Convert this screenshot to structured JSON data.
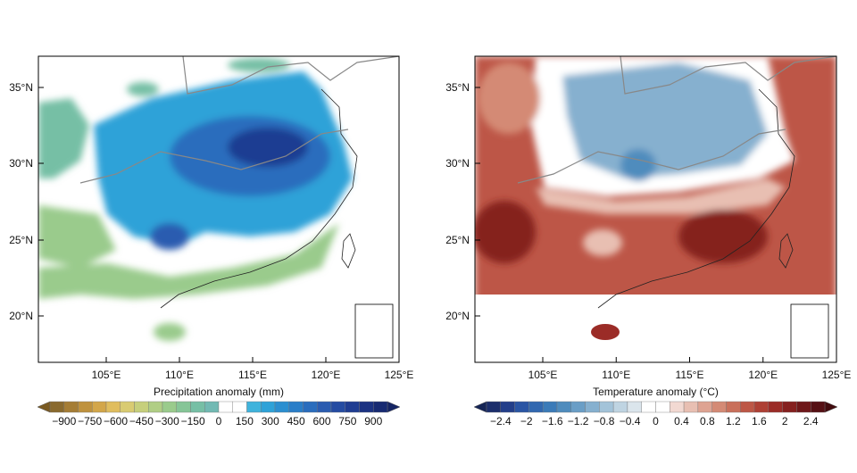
{
  "panels": [
    {
      "id": "precip",
      "lat_ticks": [
        "35°N",
        "30°N",
        "25°N",
        "20°N"
      ],
      "lon_ticks": [
        "105°E",
        "110°E",
        "115°E",
        "120°E",
        "125°E"
      ],
      "colorbar": {
        "title": "Precipitation anomaly (mm)",
        "labels": [
          "−900",
          "−750",
          "−600",
          "−450",
          "−300",
          "−150",
          "0",
          "150",
          "300",
          "450",
          "600",
          "750",
          "900"
        ],
        "colors": [
          "#8a6a2e",
          "#a57d35",
          "#bf923e",
          "#d3a64a",
          "#e0bd5e",
          "#d9cb72",
          "#c6cf7c",
          "#b0ce85",
          "#9acb8c",
          "#86c597",
          "#76bfa5",
          "#72b9b3",
          "#ffffff",
          "#ffffff",
          "#3fb3dc",
          "#2ea2d8",
          "#2b8fd0",
          "#2a7ec8",
          "#2a6dbd",
          "#2a5cb0",
          "#254ca2",
          "#1f3d92",
          "#1b3282",
          "#172a72"
        ],
        "under_color": "#7a5a22",
        "over_color": "#142463"
      }
    },
    {
      "id": "temp",
      "lat_ticks": [
        "35°N",
        "30°N",
        "25°N",
        "20°N"
      ],
      "lon_ticks": [
        "105°E",
        "110°E",
        "115°E",
        "120°E",
        "125°E"
      ],
      "colorbar": {
        "title": "Temperature anomaly (°C)",
        "labels": [
          "−2.4",
          "−2",
          "−1.6",
          "−1.2",
          "−0.8",
          "−0.4",
          "0",
          "0.4",
          "0.8",
          "1.2",
          "1.6",
          "2",
          "2.4"
        ],
        "colors": [
          "#1b2e6b",
          "#233f8a",
          "#2a55a4",
          "#3168b0",
          "#3b7bb8",
          "#4f8cbd",
          "#6a9ec6",
          "#86b0cf",
          "#a3c3d9",
          "#bfd4e2",
          "#dbe5ec",
          "#ffffff",
          "#ffffff",
          "#f2d9d2",
          "#e8bfb2",
          "#dea392",
          "#d48a75",
          "#c9705b",
          "#bd5746",
          "#ae4034",
          "#9b2c27",
          "#85201f",
          "#6e1719",
          "#561014"
        ],
        "under_color": "#152556",
        "over_color": "#420b0e"
      }
    }
  ]
}
